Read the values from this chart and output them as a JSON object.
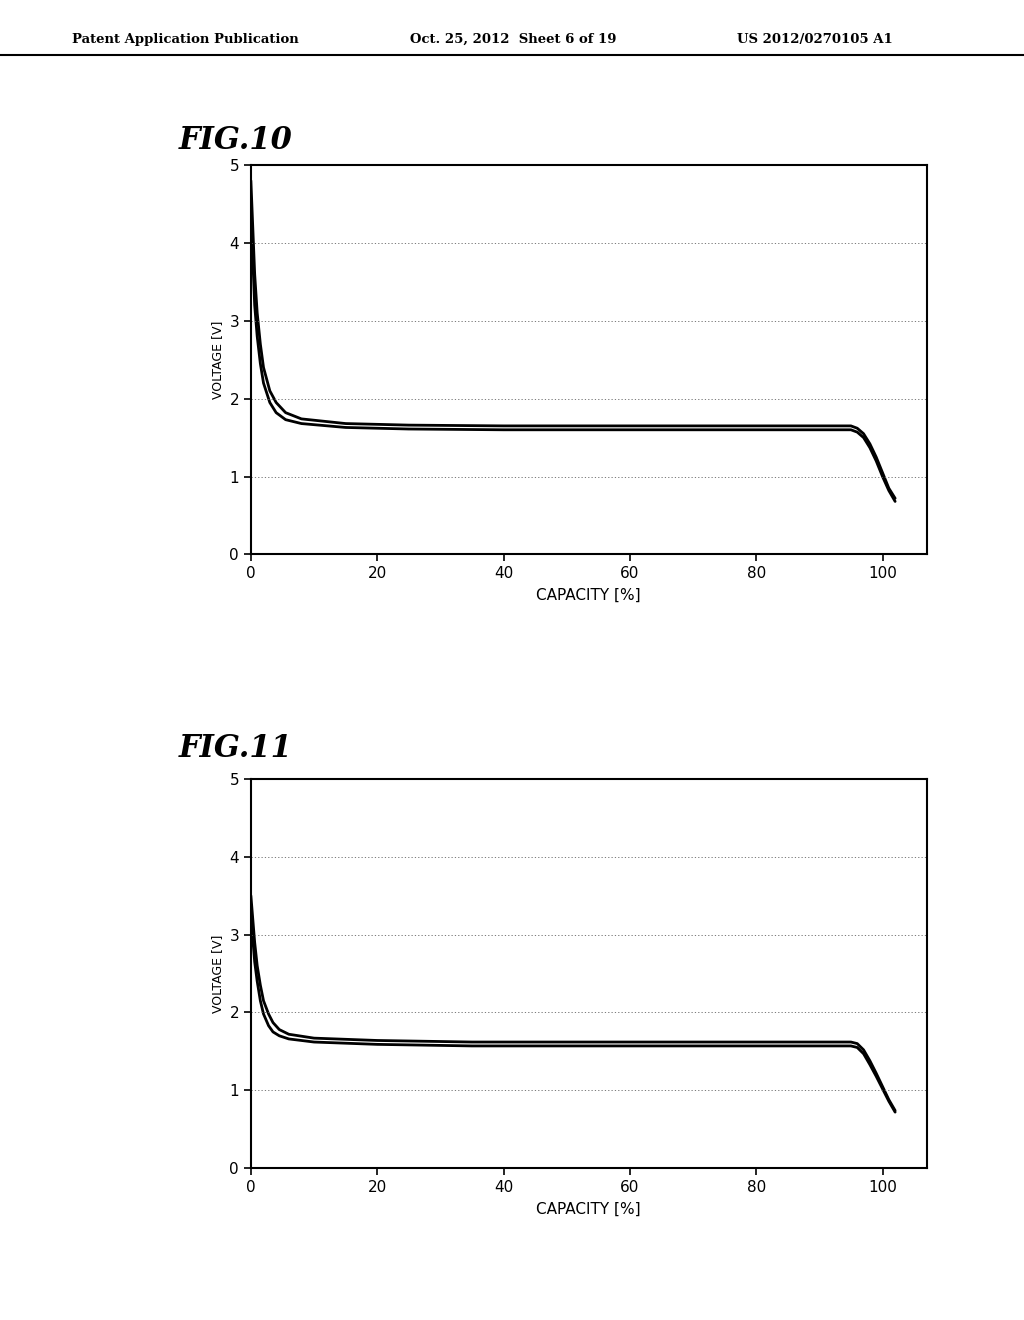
{
  "header_left": "Patent Application Publication",
  "header_center": "Oct. 25, 2012  Sheet 6 of 19",
  "header_right": "US 2012/0270105 A1",
  "fig10_title": "FIG.10",
  "fig11_title": "FIG.11",
  "xlabel": "CAPACITY [%]",
  "ylabel": "VOLTAGE [V]",
  "xlim": [
    0,
    107
  ],
  "ylim": [
    0,
    5
  ],
  "xticks": [
    0,
    20,
    40,
    60,
    80,
    100
  ],
  "yticks": [
    0,
    1,
    2,
    3,
    4,
    5
  ],
  "line_color": "#000000",
  "grid_color": "#888888",
  "background": "#ffffff",
  "text_color": "#000000",
  "fig10_curve1_x": [
    0,
    0.3,
    0.6,
    1.0,
    1.5,
    2.0,
    3.0,
    4.0,
    5.5,
    8,
    15,
    25,
    40,
    55,
    70,
    85,
    92,
    95,
    96,
    97,
    98,
    99,
    100,
    101,
    102
  ],
  "fig10_curve1_y": [
    4.8,
    4.2,
    3.6,
    3.1,
    2.7,
    2.4,
    2.1,
    1.95,
    1.82,
    1.74,
    1.68,
    1.66,
    1.65,
    1.65,
    1.65,
    1.65,
    1.65,
    1.65,
    1.62,
    1.55,
    1.42,
    1.25,
    1.05,
    0.85,
    0.72
  ],
  "fig10_curve2_x": [
    0,
    0.3,
    0.6,
    1.0,
    1.5,
    2.0,
    3.0,
    4.0,
    5.5,
    8,
    15,
    25,
    40,
    55,
    70,
    85,
    92,
    95,
    96,
    97,
    98,
    99,
    100,
    101,
    102
  ],
  "fig10_curve2_y": [
    4.5,
    3.8,
    3.2,
    2.8,
    2.45,
    2.2,
    1.95,
    1.82,
    1.73,
    1.68,
    1.63,
    1.61,
    1.6,
    1.6,
    1.6,
    1.6,
    1.6,
    1.6,
    1.57,
    1.5,
    1.37,
    1.2,
    1.0,
    0.82,
    0.68
  ],
  "fig11_curve1_x": [
    0,
    0.3,
    0.6,
    1.0,
    1.5,
    2.0,
    2.8,
    3.5,
    4.5,
    6,
    10,
    20,
    35,
    50,
    65,
    80,
    90,
    93,
    95,
    96,
    97,
    98,
    99,
    100,
    101,
    102
  ],
  "fig11_curve1_y": [
    3.5,
    3.2,
    2.9,
    2.6,
    2.35,
    2.15,
    1.98,
    1.87,
    1.78,
    1.72,
    1.67,
    1.64,
    1.62,
    1.62,
    1.62,
    1.62,
    1.62,
    1.62,
    1.62,
    1.6,
    1.52,
    1.38,
    1.22,
    1.05,
    0.88,
    0.74
  ],
  "fig11_curve2_x": [
    0,
    0.3,
    0.6,
    1.0,
    1.5,
    2.0,
    2.8,
    3.5,
    4.5,
    6,
    10,
    20,
    35,
    50,
    65,
    80,
    90,
    93,
    95,
    96,
    97,
    98,
    99,
    100,
    101,
    102
  ],
  "fig11_curve2_y": [
    3.2,
    2.95,
    2.65,
    2.4,
    2.15,
    1.98,
    1.83,
    1.75,
    1.7,
    1.66,
    1.62,
    1.59,
    1.57,
    1.57,
    1.57,
    1.57,
    1.57,
    1.57,
    1.57,
    1.55,
    1.47,
    1.33,
    1.18,
    1.02,
    0.86,
    0.72
  ]
}
